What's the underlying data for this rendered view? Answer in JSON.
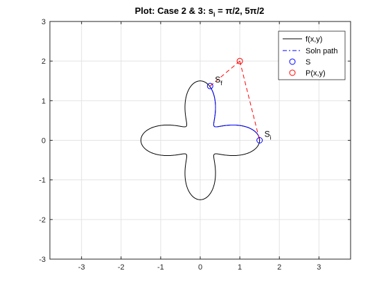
{
  "chart_data": {
    "type": "line",
    "title": {
      "main": "Plot: Case 2 & 3: s",
      "sub": "i",
      "rest": " = π/2, 5π/2"
    },
    "xlabel": "",
    "ylabel": "",
    "xlim": [
      -3.8,
      3.8
    ],
    "ylim": [
      -3,
      3
    ],
    "x_ticks": [
      -3,
      -2,
      -1,
      0,
      1,
      2,
      3
    ],
    "y_ticks": [
      -3,
      -2,
      -1,
      0,
      1,
      2,
      3
    ],
    "grid": true,
    "legend_position": "top-right",
    "curve": {
      "name": "f(x,y)",
      "equation": "r = 1 + 0.5*cos(4*theta)",
      "color": "#000000"
    },
    "solution_path": {
      "name": "Soln path",
      "theta_range": [
        "pi/2",
        "5pi/2"
      ],
      "color": "#0000ff"
    },
    "dashed_lines": {
      "color": "#ff0000",
      "segments": [
        [
          [
            1.0,
            2.0
          ],
          [
            0.25,
            1.37
          ]
        ],
        [
          [
            1.0,
            2.0
          ],
          [
            1.5,
            0.0
          ]
        ]
      ]
    },
    "points": {
      "S": {
        "name": "S",
        "color": "#0000ff",
        "values": [
          [
            1.5,
            0.0
          ],
          [
            0.25,
            1.37
          ]
        ]
      },
      "P": {
        "name": "P(x,y)",
        "color": "#ff0000",
        "values": [
          [
            1.0,
            2.0
          ]
        ]
      }
    },
    "annotations": [
      {
        "base": "S",
        "sub": "i",
        "x": 1.5,
        "y": 0.0
      },
      {
        "base": "S",
        "sub": "f",
        "x": 0.25,
        "y": 1.37
      }
    ],
    "legend": {
      "entries": [
        {
          "label": "f(x,y)",
          "style": "solid",
          "color": "#000000"
        },
        {
          "label": "Soln path",
          "style": "dashdot",
          "color": "#0000ff"
        },
        {
          "label": "S",
          "style": "marker",
          "color": "#0000ff"
        },
        {
          "label": "P(x,y)",
          "style": "marker",
          "color": "#ff0000"
        }
      ]
    }
  }
}
